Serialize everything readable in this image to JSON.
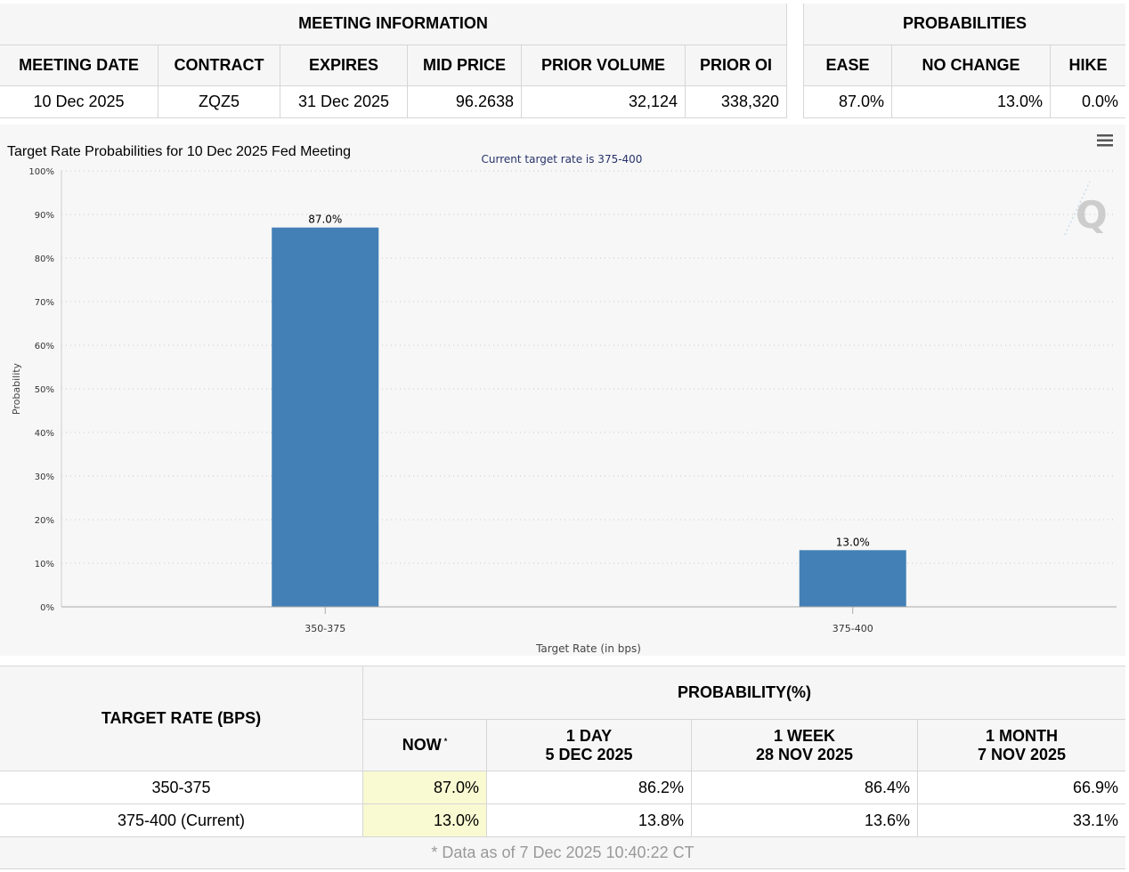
{
  "meeting_info": {
    "title": "MEETING INFORMATION",
    "columns": [
      "MEETING DATE",
      "CONTRACT",
      "EXPIRES",
      "MID PRICE",
      "PRIOR VOLUME",
      "PRIOR OI"
    ],
    "row": [
      "10 Dec 2025",
      "ZQZ5",
      "31 Dec 2025",
      "96.2638",
      "32,124",
      "338,320"
    ]
  },
  "probabilities": {
    "title": "PROBABILITIES",
    "columns": [
      "EASE",
      "NO CHANGE",
      "HIKE"
    ],
    "row": [
      "87.0%",
      "13.0%",
      "0.0%"
    ]
  },
  "menu_icon": "hamburger-menu-icon",
  "watermark_icon": "q-logo-icon",
  "chart_data": {
    "type": "bar",
    "title": "Target Rate Probabilities for 10 Dec 2025 Fed Meeting",
    "subtitle": "Current target rate is 375-400",
    "categories": [
      "350-375",
      "375-400"
    ],
    "values": [
      87.0,
      13.0
    ],
    "data_labels": [
      "87.0%",
      "13.0%"
    ],
    "xlabel": "Target Rate (in bps)",
    "ylabel": "Probability",
    "ylim": [
      0,
      100
    ],
    "yticks": [
      "0%",
      "10%",
      "20%",
      "30%",
      "40%",
      "50%",
      "60%",
      "70%",
      "80%",
      "90%",
      "100%"
    ],
    "grid": true,
    "bar_color": "#4380b6"
  },
  "history": {
    "target_header": "TARGET RATE (BPS)",
    "prob_header": "PROBABILITY(%)",
    "periods": [
      {
        "line1": "NOW",
        "line2": "*"
      },
      {
        "line1": "1 DAY",
        "line2": "5 DEC 2025"
      },
      {
        "line1": "1 WEEK",
        "line2": "28 NOV 2025"
      },
      {
        "line1": "1 MONTH",
        "line2": "7 NOV 2025"
      }
    ],
    "rows": [
      {
        "rate": "350-375",
        "values": [
          "87.0%",
          "86.2%",
          "86.4%",
          "66.9%"
        ]
      },
      {
        "rate": "375-400 (Current)",
        "values": [
          "13.0%",
          "13.8%",
          "13.6%",
          "33.1%"
        ]
      }
    ],
    "footnote": "* Data as of 7 Dec 2025 10:40:22 CT"
  }
}
